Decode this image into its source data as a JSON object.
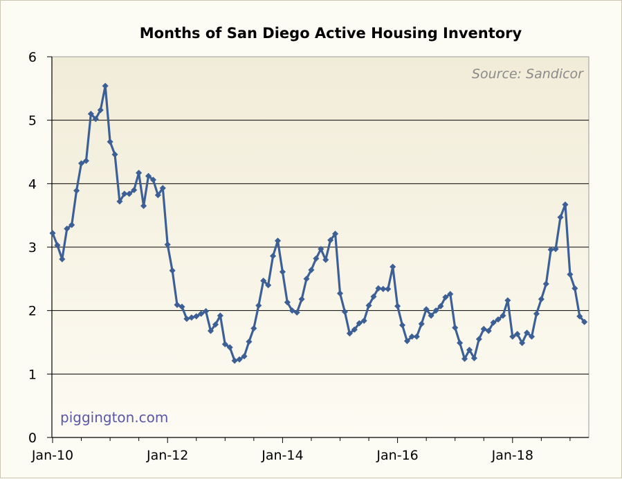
{
  "chart_data": {
    "type": "line",
    "title": "Months of San Diego Active Housing Inventory",
    "xlabel": "",
    "ylabel": "",
    "ylim": [
      0,
      6
    ],
    "yticks": [
      "0",
      "1",
      "2",
      "3",
      "4",
      "5",
      "6"
    ],
    "xticks": [
      {
        "label": "Jan-10",
        "month_index": 0
      },
      {
        "label": "Jan-12",
        "month_index": 24
      },
      {
        "label": "Jan-14",
        "month_index": 48
      },
      {
        "label": "Jan-16",
        "month_index": 72
      },
      {
        "label": "Jan-18",
        "month_index": 96
      }
    ],
    "start_month": "Jan-10",
    "grid": "horizontal",
    "annotations": {
      "source": "Source: Sandicor",
      "watermark": "piggington.com"
    },
    "colors": {
      "line": "#3c5f95",
      "marker": "#3c5f95",
      "plot_background_top": "#f1ecd8",
      "plot_background_bottom": "#fdfbf3",
      "gridline": "#000000"
    },
    "series": [
      {
        "values": [
          3.22,
          3.03,
          2.81,
          3.29,
          3.35,
          3.89,
          4.32,
          4.36,
          5.1,
          5.02,
          5.16,
          5.54,
          4.66,
          4.46,
          3.72,
          3.84,
          3.84,
          3.9,
          4.17,
          3.65,
          4.12,
          4.06,
          3.82,
          3.93,
          3.04,
          2.63,
          2.09,
          2.06,
          1.87,
          1.89,
          1.91,
          1.95,
          1.99,
          1.68,
          1.78,
          1.92,
          1.47,
          1.42,
          1.21,
          1.23,
          1.28,
          1.51,
          1.72,
          2.08,
          2.47,
          2.4,
          2.86,
          3.1,
          2.61,
          2.13,
          2.0,
          1.97,
          2.18,
          2.5,
          2.64,
          2.82,
          2.97,
          2.8,
          3.11,
          3.21,
          2.27,
          1.98,
          1.64,
          1.7,
          1.8,
          1.84,
          2.08,
          2.22,
          2.35,
          2.34,
          2.34,
          2.69,
          2.07,
          1.77,
          1.52,
          1.59,
          1.59,
          1.79,
          2.02,
          1.92,
          2.0,
          2.07,
          2.21,
          2.26,
          1.73,
          1.49,
          1.24,
          1.38,
          1.25,
          1.55,
          1.71,
          1.68,
          1.81,
          1.86,
          1.92,
          2.16,
          1.59,
          1.63,
          1.49,
          1.65,
          1.59,
          1.95,
          2.18,
          2.42,
          2.96,
          2.97,
          3.47,
          3.67,
          2.57,
          2.35,
          1.91,
          1.82
        ]
      }
    ]
  }
}
